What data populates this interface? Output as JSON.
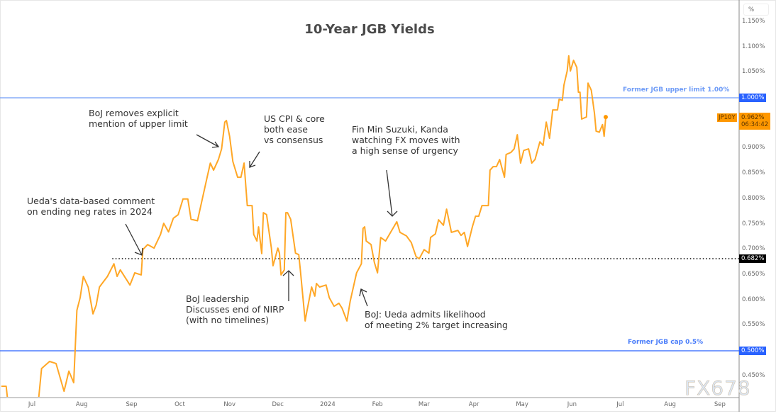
{
  "chart_data": {
    "type": "line",
    "title": "10-Year JGB Yields",
    "y_unit": "%",
    "ylim": [
      0.41,
      1.16
    ],
    "y_ticks": [
      "1.150%",
      "1.100%",
      "1.050%",
      "1.000%",
      "0.950%",
      "0.900%",
      "0.850%",
      "0.800%",
      "0.750%",
      "0.700%",
      "0.650%",
      "0.600%",
      "0.550%",
      "0.500%",
      "0.450%"
    ],
    "y_tick_values": [
      1.15,
      1.1,
      1.05,
      1.0,
      0.95,
      0.9,
      0.85,
      0.8,
      0.75,
      0.7,
      0.65,
      0.6,
      0.55,
      0.5,
      0.45
    ],
    "x_ticks": [
      {
        "label": "Jul",
        "date": "2023-07-01"
      },
      {
        "label": "Aug",
        "date": "2023-08-01"
      },
      {
        "label": "Sep",
        "date": "2023-09-01"
      },
      {
        "label": "Oct",
        "date": "2023-10-01"
      },
      {
        "label": "Nov",
        "date": "2023-11-01"
      },
      {
        "label": "Dec",
        "date": "2023-12-01"
      },
      {
        "label": "2024",
        "date": "2024-01-01"
      },
      {
        "label": "Feb",
        "date": "2024-02-01"
      },
      {
        "label": "Mar",
        "date": "2024-03-01"
      },
      {
        "label": "Apr",
        "date": "2024-04-01"
      },
      {
        "label": "May",
        "date": "2024-05-01"
      },
      {
        "label": "Jun",
        "date": "2024-06-01"
      },
      {
        "label": "Jul",
        "date": "2024-07-01"
      },
      {
        "label": "Aug",
        "date": "2024-08-01"
      },
      {
        "label": "Sep",
        "date": "2024-09-01"
      }
    ],
    "grid": false,
    "series": [
      {
        "name": "JP10Y",
        "color": "#ffa726",
        "points": [
          [
            "2023-06-12",
            0.43
          ],
          [
            "2023-06-15",
            0.43
          ],
          [
            "2023-06-16",
            0.4
          ],
          [
            "2023-07-05",
            0.4
          ],
          [
            "2023-07-07",
            0.465
          ],
          [
            "2023-07-12",
            0.479
          ],
          [
            "2023-07-16",
            0.475
          ],
          [
            "2023-07-21",
            0.42
          ],
          [
            "2023-07-24",
            0.46
          ],
          [
            "2023-07-27",
            0.437
          ],
          [
            "2023-07-29",
            0.58
          ],
          [
            "2023-07-31",
            0.605
          ],
          [
            "2023-08-02",
            0.647
          ],
          [
            "2023-08-05",
            0.626
          ],
          [
            "2023-08-08",
            0.573
          ],
          [
            "2023-08-10",
            0.59
          ],
          [
            "2023-08-12",
            0.626
          ],
          [
            "2023-08-17",
            0.647
          ],
          [
            "2023-08-21",
            0.672
          ],
          [
            "2023-08-23",
            0.647
          ],
          [
            "2023-08-25",
            0.66
          ],
          [
            "2023-08-31",
            0.63
          ],
          [
            "2023-09-03",
            0.654
          ],
          [
            "2023-09-07",
            0.65
          ],
          [
            "2023-09-08",
            0.7
          ],
          [
            "2023-09-11",
            0.71
          ],
          [
            "2023-09-15",
            0.703
          ],
          [
            "2023-09-19",
            0.73
          ],
          [
            "2023-09-21",
            0.752
          ],
          [
            "2023-09-24",
            0.735
          ],
          [
            "2023-09-27",
            0.762
          ],
          [
            "2023-09-30",
            0.769
          ],
          [
            "2023-10-03",
            0.8
          ],
          [
            "2023-10-06",
            0.8
          ],
          [
            "2023-10-08",
            0.76
          ],
          [
            "2023-10-12",
            0.757
          ],
          [
            "2023-10-15",
            0.8
          ],
          [
            "2023-10-18",
            0.843
          ],
          [
            "2023-10-20",
            0.871
          ],
          [
            "2023-10-22",
            0.857
          ],
          [
            "2023-10-25",
            0.878
          ],
          [
            "2023-10-27",
            0.899
          ],
          [
            "2023-10-29",
            0.952
          ],
          [
            "2023-10-30",
            0.955
          ],
          [
            "2023-11-01",
            0.924
          ],
          [
            "2023-11-03",
            0.874
          ],
          [
            "2023-11-06",
            0.843
          ],
          [
            "2023-11-08",
            0.843
          ],
          [
            "2023-11-10",
            0.871
          ],
          [
            "2023-11-12",
            0.787
          ],
          [
            "2023-11-15",
            0.787
          ],
          [
            "2023-11-16",
            0.73
          ],
          [
            "2023-11-18",
            0.717
          ],
          [
            "2023-11-19",
            0.745
          ],
          [
            "2023-11-21",
            0.692
          ],
          [
            "2023-11-22",
            0.773
          ],
          [
            "2023-11-24",
            0.769
          ],
          [
            "2023-11-27",
            0.703
          ],
          [
            "2023-11-28",
            0.668
          ],
          [
            "2023-12-01",
            0.703
          ],
          [
            "2023-12-02",
            0.693
          ],
          [
            "2023-12-03",
            0.65
          ],
          [
            "2023-12-05",
            0.66
          ],
          [
            "2023-12-06",
            0.773
          ],
          [
            "2023-12-07",
            0.773
          ],
          [
            "2023-12-09",
            0.76
          ],
          [
            "2023-12-12",
            0.693
          ],
          [
            "2023-12-14",
            0.69
          ],
          [
            "2023-12-15",
            0.66
          ],
          [
            "2023-12-18",
            0.559
          ],
          [
            "2023-12-19",
            0.577
          ],
          [
            "2023-12-22",
            0.626
          ],
          [
            "2023-12-24",
            0.608
          ],
          [
            "2023-12-25",
            0.633
          ],
          [
            "2023-12-27",
            0.626
          ],
          [
            "2023-12-31",
            0.63
          ],
          [
            "2024-01-02",
            0.605
          ],
          [
            "2024-01-05",
            0.588
          ],
          [
            "2024-01-08",
            0.594
          ],
          [
            "2024-01-10",
            0.584
          ],
          [
            "2024-01-13",
            0.559
          ],
          [
            "2024-01-15",
            0.598
          ],
          [
            "2024-01-17",
            0.626
          ],
          [
            "2024-01-19",
            0.654
          ],
          [
            "2024-01-22",
            0.672
          ],
          [
            "2024-01-23",
            0.742
          ],
          [
            "2024-01-24",
            0.745
          ],
          [
            "2024-01-25",
            0.717
          ],
          [
            "2024-01-28",
            0.71
          ],
          [
            "2024-01-30",
            0.675
          ],
          [
            "2024-02-01",
            0.654
          ],
          [
            "2024-02-03",
            0.724
          ],
          [
            "2024-02-06",
            0.717
          ],
          [
            "2024-02-08",
            0.728
          ],
          [
            "2024-02-13",
            0.755
          ],
          [
            "2024-02-15",
            0.734
          ],
          [
            "2024-02-19",
            0.727
          ],
          [
            "2024-02-22",
            0.714
          ],
          [
            "2024-02-25",
            0.686
          ],
          [
            "2024-02-27",
            0.682
          ],
          [
            "2024-03-01",
            0.7
          ],
          [
            "2024-03-04",
            0.693
          ],
          [
            "2024-03-05",
            0.724
          ],
          [
            "2024-03-08",
            0.731
          ],
          [
            "2024-03-10",
            0.759
          ],
          [
            "2024-03-13",
            0.748
          ],
          [
            "2024-03-15",
            0.78
          ],
          [
            "2024-03-18",
            0.734
          ],
          [
            "2024-03-22",
            0.738
          ],
          [
            "2024-03-24",
            0.728
          ],
          [
            "2024-03-26",
            0.734
          ],
          [
            "2024-03-28",
            0.706
          ],
          [
            "2024-03-31",
            0.745
          ],
          [
            "2024-04-02",
            0.766
          ],
          [
            "2024-04-04",
            0.766
          ],
          [
            "2024-04-06",
            0.787
          ],
          [
            "2024-04-10",
            0.787
          ],
          [
            "2024-04-11",
            0.857
          ],
          [
            "2024-04-13",
            0.864
          ],
          [
            "2024-04-15",
            0.864
          ],
          [
            "2024-04-17",
            0.878
          ],
          [
            "2024-04-20",
            0.843
          ],
          [
            "2024-04-21",
            0.888
          ],
          [
            "2024-04-24",
            0.892
          ],
          [
            "2024-04-26",
            0.899
          ],
          [
            "2024-04-28",
            0.927
          ],
          [
            "2024-04-30",
            0.871
          ],
          [
            "2024-05-02",
            0.896
          ],
          [
            "2024-05-05",
            0.899
          ],
          [
            "2024-05-07",
            0.871
          ],
          [
            "2024-05-09",
            0.878
          ],
          [
            "2024-05-12",
            0.913
          ],
          [
            "2024-05-14",
            0.906
          ],
          [
            "2024-05-16",
            0.952
          ],
          [
            "2024-05-18",
            0.92
          ],
          [
            "2024-05-20",
            0.976
          ],
          [
            "2024-05-23",
            0.976
          ],
          [
            "2024-05-24",
            0.997
          ],
          [
            "2024-05-26",
            0.995
          ],
          [
            "2024-05-27",
            1.025
          ],
          [
            "2024-05-29",
            1.053
          ],
          [
            "2024-05-30",
            1.083
          ],
          [
            "2024-05-31",
            1.053
          ],
          [
            "2024-06-02",
            1.074
          ],
          [
            "2024-06-04",
            1.06
          ],
          [
            "2024-06-05",
            1.011
          ],
          [
            "2024-06-06",
            1.011
          ],
          [
            "2024-06-07",
            0.958
          ],
          [
            "2024-06-10",
            0.962
          ],
          [
            "2024-06-11",
            1.029
          ],
          [
            "2024-06-13",
            1.015
          ],
          [
            "2024-06-15",
            0.969
          ],
          [
            "2024-06-16",
            0.934
          ],
          [
            "2024-06-18",
            0.932
          ],
          [
            "2024-06-20",
            0.947
          ],
          [
            "2024-06-21",
            0.924
          ],
          [
            "2024-06-22",
            0.962
          ]
        ]
      }
    ],
    "reference_lines": [
      {
        "value": 1.0,
        "label": "Former JGB upper limit 1.00%",
        "axis_label": "1.000%",
        "color": "#6f9cf7"
      },
      {
        "value": 0.5,
        "label": "Former JGB cap 0.5%",
        "axis_label": "0.500%",
        "color": "#2962ff"
      },
      {
        "value": 0.682,
        "axis_label": "0.682%",
        "color": "#000000",
        "style": "dotted",
        "from_date": "2023-08-20"
      }
    ],
    "last_value": {
      "symbol": "JP10Y",
      "value": "0.962%",
      "countdown": "06:34:42",
      "color": "#ff9800"
    },
    "annotations": [
      {
        "text": "BoJ removes explicit\nmention of upper limit"
      },
      {
        "text": "US CPI & core\nboth ease\nvs consensus"
      },
      {
        "text": "Ueda's data-based comment\non ending neg rates in 2024"
      },
      {
        "text": "Fin Min Suzuki, Kanda\nwatching FX moves with\na high sense of urgency"
      },
      {
        "text": "BoJ leadership\nDiscusses end of NIRP\n(with no timelines)"
      },
      {
        "text": "BoJ: Ueda admits likelihood\nof meeting 2% target increasing"
      }
    ]
  },
  "watermark": "FX678"
}
